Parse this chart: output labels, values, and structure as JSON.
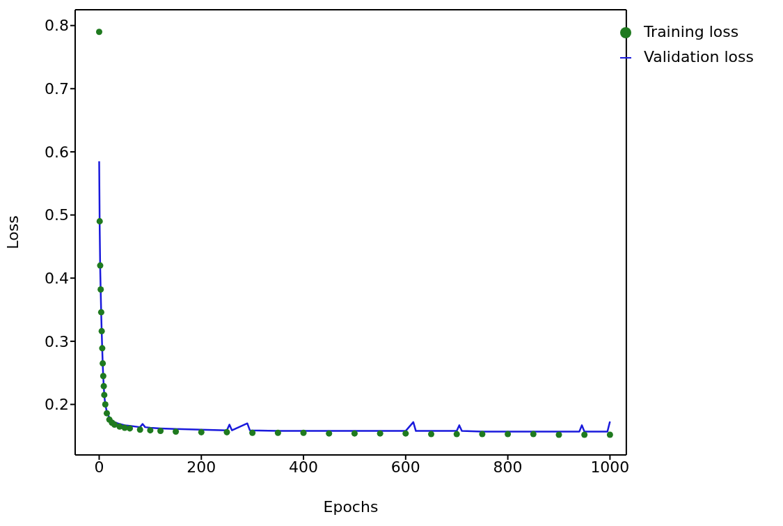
{
  "chart_data": {
    "type": "line",
    "xlabel": "Epochs",
    "ylabel": "Loss",
    "xlim": [
      -47,
      1032
    ],
    "ylim": [
      0.12,
      0.825
    ],
    "xticks": [
      0,
      200,
      400,
      600,
      800,
      1000
    ],
    "yticks": [
      0.2,
      0.3,
      0.4,
      0.5,
      0.6,
      0.7,
      0.8
    ],
    "grid": false,
    "legend": "top right",
    "x": [
      0,
      1,
      2,
      3,
      4,
      5,
      6,
      7,
      8,
      9,
      10,
      12,
      15,
      20,
      25,
      30,
      40,
      50,
      60,
      80,
      85,
      90,
      100,
      120,
      150,
      200,
      250,
      255,
      260,
      290,
      295,
      350,
      400,
      450,
      500,
      550,
      600,
      615,
      620,
      650,
      700,
      705,
      710,
      750,
      800,
      850,
      900,
      940,
      945,
      950,
      980,
      995,
      1000
    ],
    "series": [
      {
        "name": "Training loss",
        "type": "scatter",
        "marker": "circle",
        "color": "#1f7a1f",
        "x": [
          0,
          1,
          2,
          3,
          4,
          5,
          6,
          7,
          8,
          9,
          10,
          12,
          15,
          20,
          25,
          30,
          40,
          50,
          60,
          80,
          100,
          120,
          150,
          200,
          250,
          300,
          350,
          400,
          450,
          500,
          550,
          600,
          650,
          700,
          750,
          800,
          850,
          900,
          950,
          1000
        ],
        "values": [
          0.79,
          0.49,
          0.42,
          0.382,
          0.346,
          0.316,
          0.289,
          0.265,
          0.245,
          0.229,
          0.215,
          0.2,
          0.186,
          0.176,
          0.171,
          0.168,
          0.165,
          0.163,
          0.162,
          0.16,
          0.159,
          0.158,
          0.157,
          0.156,
          0.156,
          0.155,
          0.155,
          0.155,
          0.154,
          0.154,
          0.154,
          0.154,
          0.153,
          0.153,
          0.153,
          0.153,
          0.153,
          0.152,
          0.152,
          0.152
        ]
      },
      {
        "name": "Validation loss",
        "marker": "none",
        "color": "#1a1adc",
        "values": [
          0.585,
          0.48,
          0.415,
          0.378,
          0.343,
          0.313,
          0.287,
          0.263,
          0.243,
          0.228,
          0.214,
          0.2,
          0.188,
          0.179,
          0.175,
          0.172,
          0.169,
          0.167,
          0.166,
          0.164,
          0.169,
          0.164,
          0.163,
          0.162,
          0.161,
          0.16,
          0.159,
          0.168,
          0.159,
          0.17,
          0.159,
          0.158,
          0.158,
          0.158,
          0.158,
          0.158,
          0.158,
          0.172,
          0.158,
          0.158,
          0.158,
          0.167,
          0.158,
          0.157,
          0.157,
          0.157,
          0.157,
          0.157,
          0.167,
          0.157,
          0.157,
          0.157,
          0.173
        ]
      }
    ]
  }
}
